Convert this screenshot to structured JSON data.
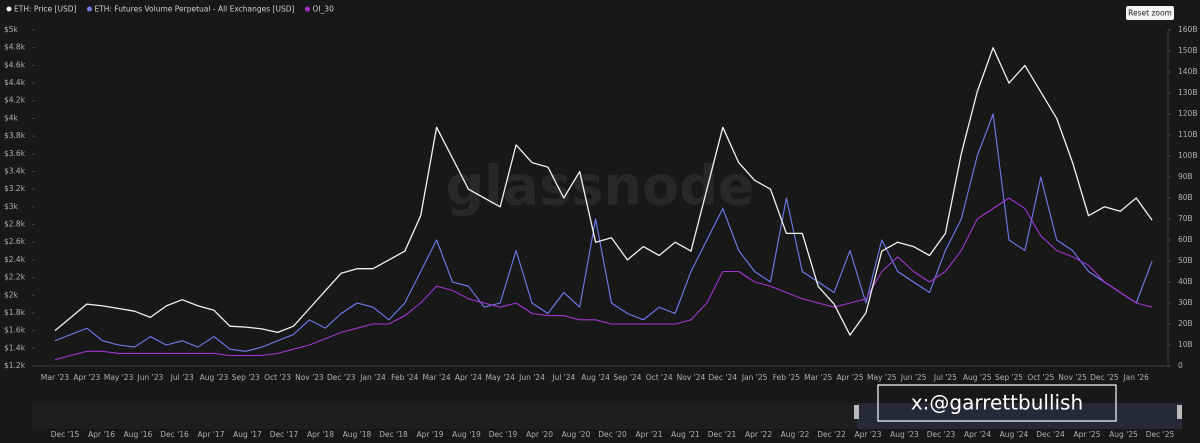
{
  "chart_data": {
    "type": "line",
    "categories": [
      "Mar '23",
      null,
      "Apr '23",
      null,
      "May '23",
      null,
      "Jun '23",
      null,
      "Jul '23",
      null,
      "Aug '23",
      null,
      "Sep '23",
      null,
      "Oct '23",
      null,
      "Nov '23",
      null,
      "Dec '23",
      null,
      "Jan '24",
      null,
      "Feb '24",
      null,
      "Mar '24",
      null,
      "Apr '24",
      null,
      "May '24",
      null,
      "Jun '24",
      null,
      "Jul '24",
      null,
      "Aug '24",
      null,
      "Sep '24",
      null,
      "Oct '24",
      null,
      "Nov '24",
      null,
      "Dec '24",
      null,
      "Jan '25",
      null,
      "Feb '25",
      null,
      "Mar '25",
      null,
      "Apr '25",
      null,
      "May '25",
      null,
      "Jun '25",
      null,
      "Jul '25",
      null,
      "Aug '25",
      null,
      "Sep '25",
      null,
      "Oct '25",
      null,
      "Nov '25",
      null,
      "Dec '25",
      null,
      "Jan '26",
      null
    ],
    "series": [
      {
        "name": "ETH: Price [USD]",
        "color": "#f2f2f2",
        "axis": "y",
        "values": [
          1600,
          1750,
          1900,
          1880,
          1850,
          1820,
          1750,
          1880,
          1950,
          1880,
          1830,
          1650,
          1640,
          1620,
          1580,
          1650,
          1850,
          2050,
          2250,
          2300,
          2300,
          2400,
          2500,
          2900,
          3900,
          3550,
          3200,
          3100,
          3000,
          3700,
          3500,
          3450,
          3100,
          3400,
          2600,
          2650,
          2400,
          2550,
          2450,
          2600,
          2500,
          3200,
          3900,
          3500,
          3300,
          3200,
          2700,
          2700,
          2100,
          1900,
          1550,
          1800,
          2500,
          2600,
          2550,
          2450,
          2700,
          3600,
          4300,
          4800,
          4400,
          4600,
          4300,
          4000,
          3500,
          2900,
          3000,
          2950,
          3100,
          2850
        ]
      },
      {
        "name": "ETH: Futures Volume Perpetual - All Exchanges [USD]",
        "color": "#6f7df0",
        "axis": "y2",
        "values": [
          12,
          15,
          18,
          12,
          10,
          9,
          14,
          10,
          12,
          9,
          14,
          8,
          7,
          9,
          12,
          15,
          22,
          18,
          25,
          30,
          28,
          22,
          30,
          45,
          60,
          40,
          38,
          28,
          30,
          55,
          30,
          25,
          35,
          28,
          70,
          30,
          25,
          22,
          28,
          25,
          45,
          60,
          75,
          55,
          45,
          40,
          80,
          45,
          40,
          35,
          55,
          30,
          60,
          45,
          40,
          35,
          55,
          70,
          100,
          120,
          60,
          55,
          90,
          60,
          55,
          45,
          40,
          35,
          30,
          50
        ]
      },
      {
        "name": "OI_30",
        "color": "#a235d0",
        "axis": "y2",
        "values": [
          3,
          5,
          7,
          7,
          6,
          6,
          6,
          6,
          6,
          6,
          6,
          5,
          5,
          5,
          6,
          8,
          10,
          13,
          16,
          18,
          20,
          20,
          24,
          30,
          38,
          36,
          32,
          30,
          28,
          30,
          25,
          24,
          24,
          22,
          22,
          20,
          20,
          20,
          20,
          20,
          22,
          30,
          45,
          45,
          40,
          38,
          35,
          32,
          30,
          28,
          30,
          32,
          45,
          52,
          45,
          40,
          45,
          55,
          70,
          75,
          80,
          75,
          62,
          55,
          52,
          48,
          40,
          35,
          30,
          28
        ]
      }
    ],
    "ylim": [
      1200,
      5000
    ],
    "yticks": [
      {
        "value": 1200,
        "label": "$1.2k"
      },
      {
        "value": 1400,
        "label": "$1.4k"
      },
      {
        "value": 1600,
        "label": "$1.6k"
      },
      {
        "value": 1800,
        "label": "$1.8k"
      },
      {
        "value": 2000,
        "label": "$2k"
      },
      {
        "value": 2200,
        "label": "$2.2k"
      },
      {
        "value": 2400,
        "label": "$2.4k"
      },
      {
        "value": 2600,
        "label": "$2.6k"
      },
      {
        "value": 2800,
        "label": "$2.8k"
      },
      {
        "value": 3000,
        "label": "$3k"
      },
      {
        "value": 3200,
        "label": "$3.2k"
      },
      {
        "value": 3400,
        "label": "$3.4k"
      },
      {
        "value": 3600,
        "label": "$3.6k"
      },
      {
        "value": 3800,
        "label": "$3.8k"
      },
      {
        "value": 4000,
        "label": "$4k"
      },
      {
        "value": 4200,
        "label": "$4.2k"
      },
      {
        "value": 4400,
        "label": "$4.4k"
      },
      {
        "value": 4600,
        "label": "$4.6k"
      },
      {
        "value": 4800,
        "label": "$4.8k"
      },
      {
        "value": 5000,
        "label": "$5k"
      }
    ],
    "y2lim": [
      0,
      160
    ],
    "y2ticks": [
      0,
      {
        "value": 10,
        "label": "10B"
      },
      {
        "value": 20,
        "label": "20B"
      },
      {
        "value": 30,
        "label": "30B"
      },
      {
        "value": 40,
        "label": "40B"
      },
      {
        "value": 50,
        "label": "50B"
      },
      {
        "value": 60,
        "label": "60B"
      },
      {
        "value": 70,
        "label": "70B"
      },
      {
        "value": 80,
        "label": "80B"
      },
      {
        "value": 90,
        "label": "90B"
      },
      {
        "value": 100,
        "label": "100B"
      },
      {
        "value": 110,
        "label": "110B"
      },
      {
        "value": 120,
        "label": "120B"
      },
      {
        "value": 130,
        "label": "130B"
      },
      {
        "value": 140,
        "label": "140B"
      },
      {
        "value": 150,
        "label": "150B"
      },
      {
        "value": 160,
        "label": "160B"
      }
    ],
    "grid": false,
    "legend": "top-left",
    "watermark": "glassnode"
  },
  "navigator": {
    "labels": [
      "Dec '15",
      "Apr '16",
      "Aug '16",
      "Dec '16",
      "Apr '17",
      "Aug '17",
      "Dec '17",
      "Apr '18",
      "Aug '18",
      "Dec '18",
      "Apr '19",
      "Aug '19",
      "Dec '19",
      "Apr '20",
      "Aug '20",
      "Dec '20",
      "Apr '21",
      "Aug '21",
      "Dec '21",
      "Apr '22",
      "Aug '22",
      "Dec '22",
      "Apr '23",
      "Aug '23",
      "Dec '23",
      "Apr '24",
      "Aug '24",
      "Dec '24",
      "Apr '25",
      "Aug '25",
      "Dec '25"
    ]
  },
  "reset_button": "Reset zoom",
  "overlay_text": "x:@garrettbullish"
}
